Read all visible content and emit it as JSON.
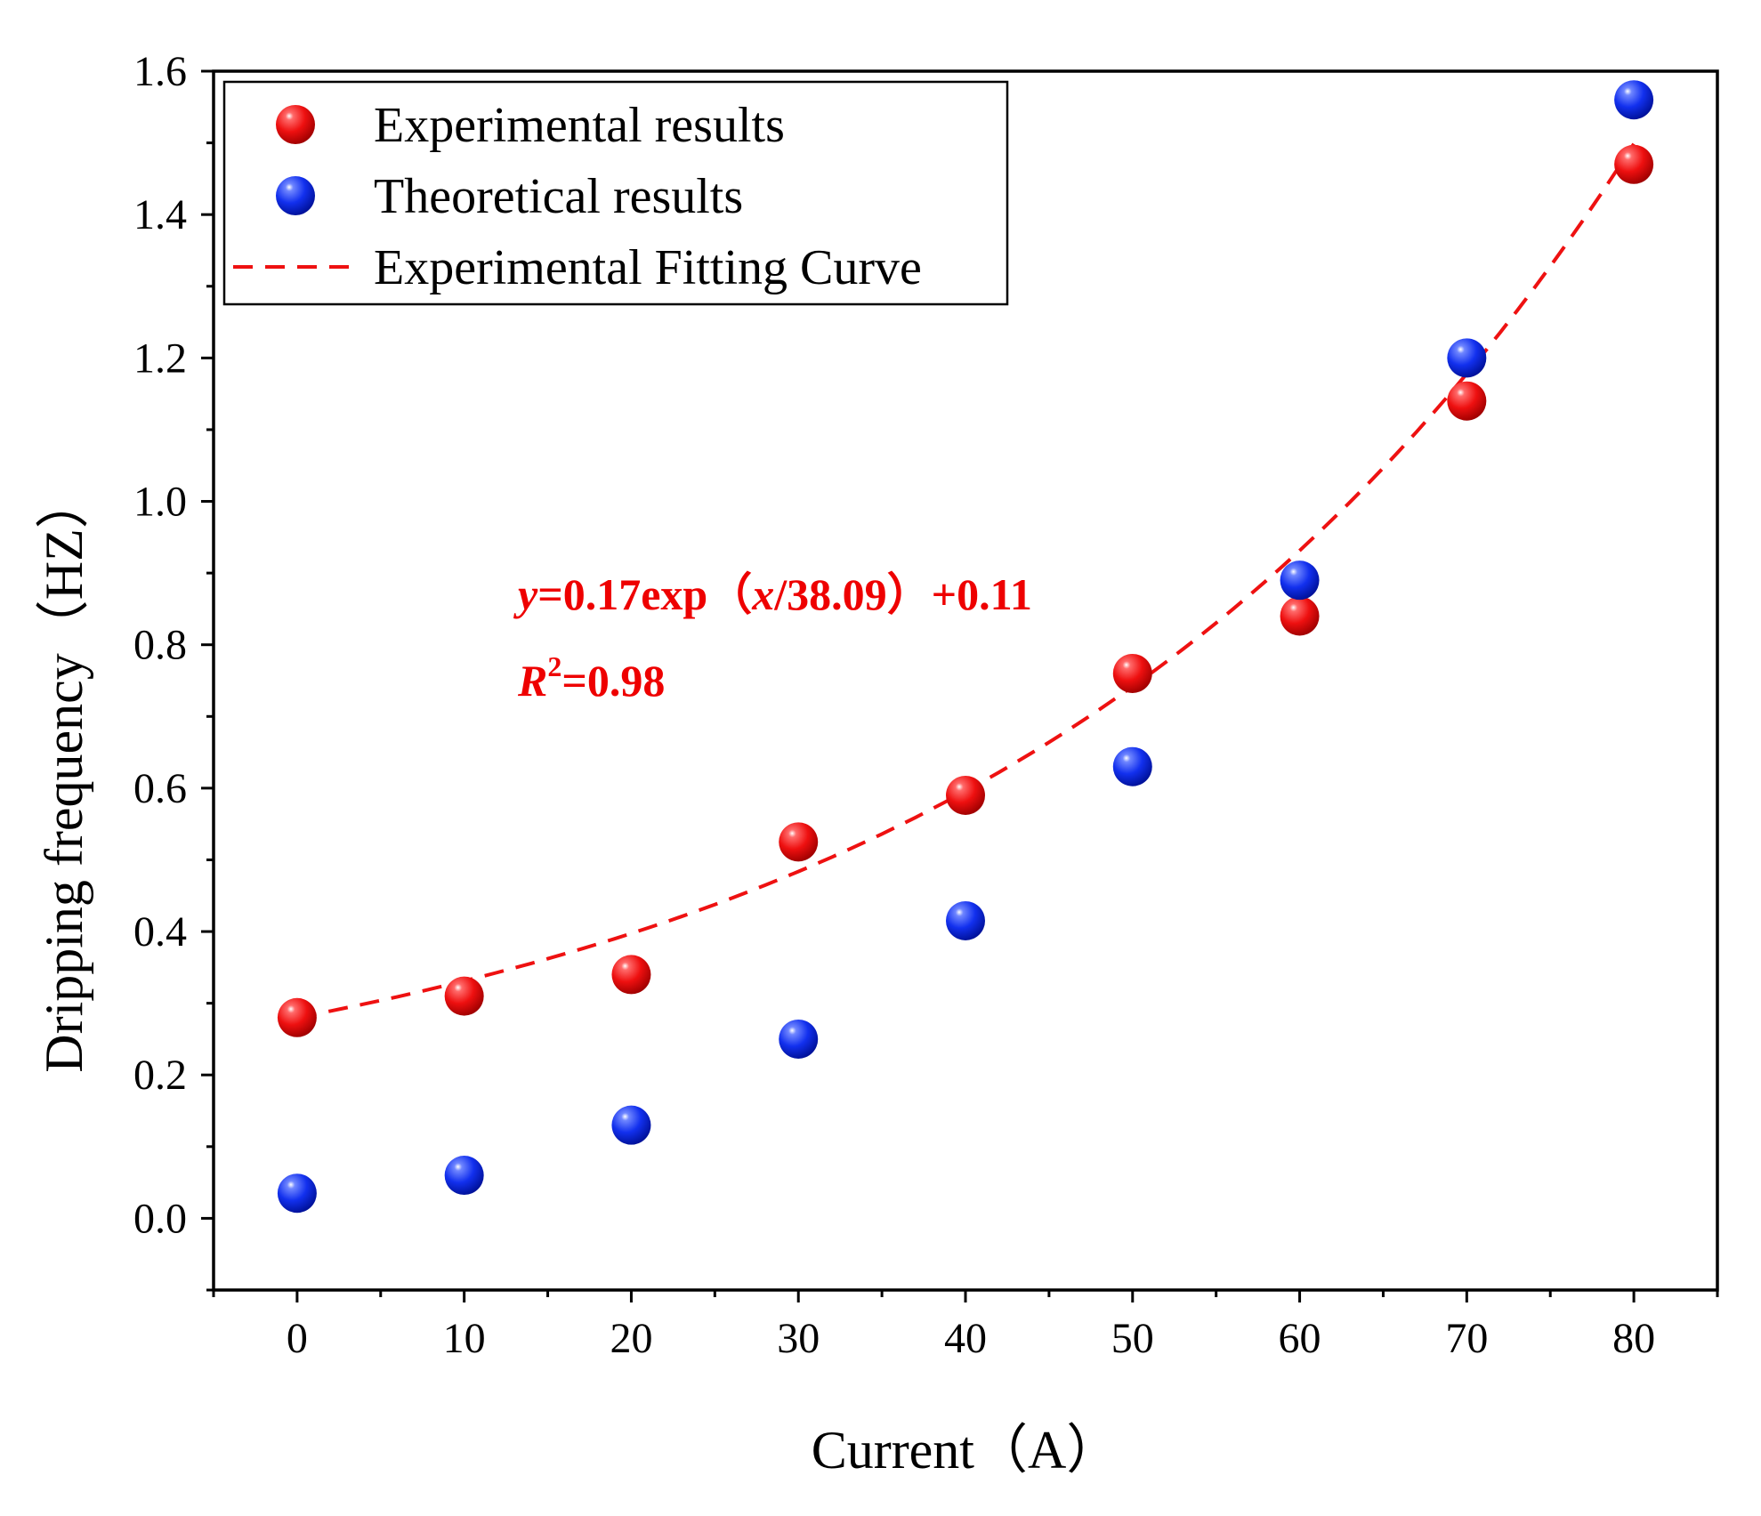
{
  "chart_data": {
    "type": "scatter",
    "xlabel": "Current（A）",
    "ylabel": "Dripping frequency（HZ）",
    "xlim": [
      -5,
      85
    ],
    "ylim": [
      -0.1,
      1.6
    ],
    "xticks": [
      0,
      10,
      20,
      30,
      40,
      50,
      60,
      70,
      80
    ],
    "xtick_labels": [
      "0",
      "10",
      "20",
      "30",
      "40",
      "50",
      "60",
      "70",
      "80"
    ],
    "yticks": [
      0.0,
      0.2,
      0.4,
      0.6,
      0.8,
      1.0,
      1.2,
      1.4,
      1.6
    ],
    "ytick_labels": [
      "0.0",
      "0.2",
      "0.4",
      "0.6",
      "0.8",
      "1.0",
      "1.2",
      "1.4",
      "1.6"
    ],
    "grid": false,
    "legend_position": "top-left",
    "series": [
      {
        "name": "Experimental results",
        "kind": "scatter",
        "color": "#ee1111",
        "x": [
          0,
          10,
          20,
          30,
          40,
          50,
          60,
          70,
          80
        ],
        "y": [
          0.28,
          0.31,
          0.34,
          0.525,
          0.59,
          0.76,
          0.84,
          1.14,
          1.47
        ]
      },
      {
        "name": "Theoretical results",
        "kind": "scatter",
        "color": "#1133ee",
        "x": [
          0,
          10,
          20,
          30,
          40,
          50,
          60,
          70,
          80
        ],
        "y": [
          0.035,
          0.06,
          0.13,
          0.25,
          0.415,
          0.63,
          0.89,
          1.2,
          1.56
        ]
      },
      {
        "name": "Experimental Fitting Curve",
        "kind": "fit-line",
        "style": "dashed",
        "color": "#ee1111",
        "model": {
          "a": 0.17,
          "t": 38.09,
          "y0": 0.11
        },
        "x_range": [
          0,
          80
        ]
      }
    ],
    "annotations": {
      "equation": {
        "y_sym": "y",
        "eq_mid": "=0.17exp（",
        "x_sym": "x",
        "eq_tail": "/38.09）+0.11"
      },
      "r_squared": {
        "r_sym": "R",
        "sup": "2",
        "value": "=0.98"
      }
    }
  }
}
